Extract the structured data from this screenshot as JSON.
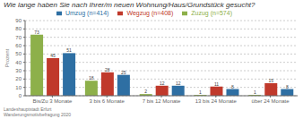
{
  "chart_data": {
    "type": "bar",
    "title": "Wie lange haben Sie nach Ihrer/m neuen Wohnung/Haus/Grundstück gesucht?",
    "ylabel": "Prozent",
    "categories": [
      "Bis/Zu 3 Monate",
      "3 bis 6 Monate",
      "7 bis 12 Monate",
      "13 bis 24 Monate",
      "über 24 Monate"
    ],
    "series": [
      {
        "name": "Zuzug (n=574)",
        "color": "#8db04a",
        "values": [
          73,
          18,
          2,
          1,
          1
        ]
      },
      {
        "name": "Wegzug (n=408)",
        "color": "#c0392b",
        "values": [
          45,
          28,
          12,
          11,
          15
        ]
      },
      {
        "name": "Umzug (n=414)",
        "color": "#2e6fa3",
        "values": [
          51,
          25,
          12,
          8,
          8
        ]
      }
    ],
    "ylim": [
      0,
      90
    ],
    "yticks": [
      0,
      10,
      20,
      30,
      40,
      50,
      60,
      70,
      80,
      90
    ],
    "grid": true,
    "legend": "top",
    "data_labels": true,
    "footnote": "Landeshauptstadt Erfurt\nWanderungsmotivbefragung 2020"
  }
}
